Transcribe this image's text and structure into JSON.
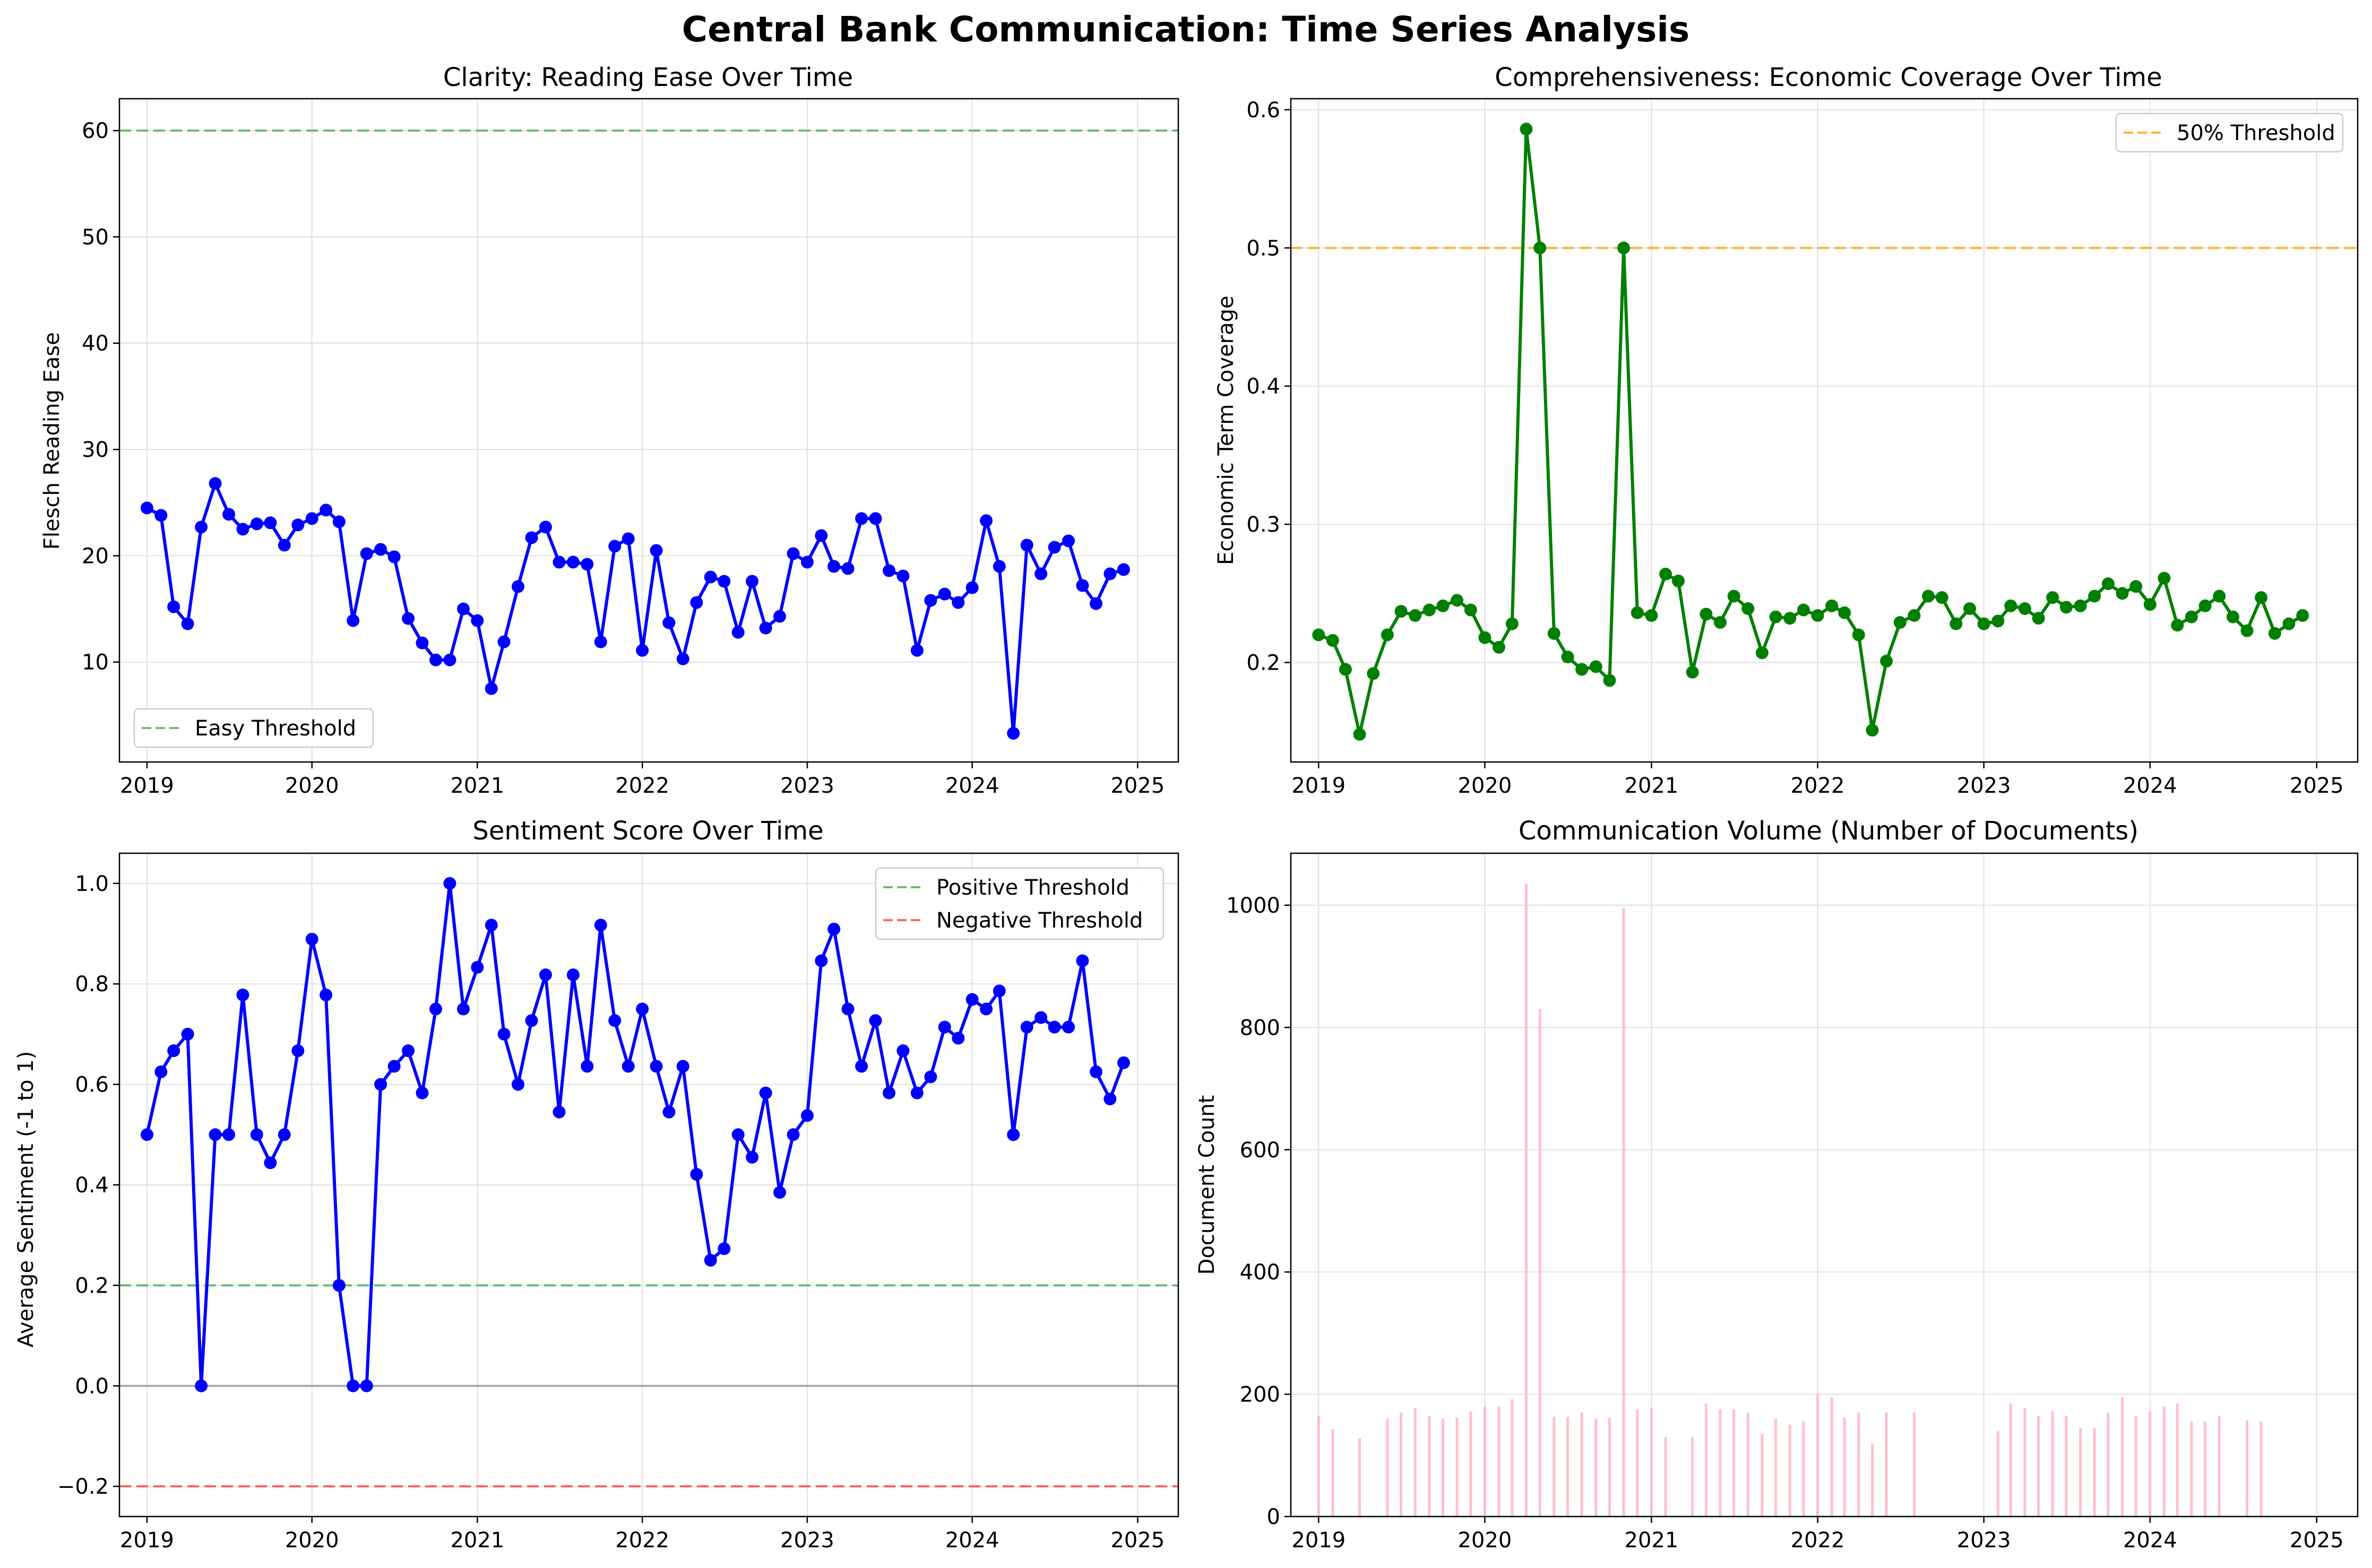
{
  "figure": {
    "title": "Central Bank Communication: Time Series Analysis"
  },
  "colors": {
    "blue": "#0000ff",
    "green": "#008000",
    "easy_threshold": "#4caf50",
    "orange_threshold": "#ffa500",
    "positive_threshold": "#4caf50",
    "negative_threshold": "#ff4040",
    "zero_line": "#808080",
    "bar": "#ffb6c1",
    "grid": "#e0e0e0"
  },
  "chart_data": [
    {
      "type": "line",
      "title": "Clarity: Reading Ease Over Time",
      "xlabel": "",
      "ylabel": "Flesch Reading Ease",
      "xlim": [
        "2018-11-01",
        "2025-04-01"
      ],
      "ylim": [
        0.6,
        63
      ],
      "grid": true,
      "x_ticks": [
        "2019",
        "2020",
        "2021",
        "2022",
        "2023",
        "2024",
        "2025"
      ],
      "y_ticks": [
        10,
        20,
        30,
        40,
        50,
        60
      ],
      "legend": {
        "placement": "lower-left",
        "entries": [
          "Easy Threshold"
        ]
      },
      "reference_lines": [
        {
          "name": "Easy Threshold",
          "y": 60,
          "color": "easy_threshold",
          "style": "dashed"
        }
      ],
      "series": [
        {
          "color": "blue",
          "x": [
            "2019-01",
            "2019-02",
            "2019-03",
            "2019-04",
            "2019-05",
            "2019-06",
            "2019-07",
            "2019-08",
            "2019-09",
            "2019-10",
            "2019-11",
            "2019-12",
            "2020-01",
            "2020-02",
            "2020-03",
            "2020-04",
            "2020-05",
            "2020-06",
            "2020-07",
            "2020-08",
            "2020-09",
            "2020-10",
            "2020-11",
            "2020-12",
            "2021-01",
            "2021-02",
            "2021-03",
            "2021-04",
            "2021-05",
            "2021-06",
            "2021-07",
            "2021-08",
            "2021-09",
            "2021-10",
            "2021-11",
            "2021-12",
            "2022-01",
            "2022-02",
            "2022-03",
            "2022-04",
            "2022-05",
            "2022-06",
            "2022-07",
            "2022-08",
            "2022-09",
            "2022-10",
            "2022-11",
            "2022-12",
            "2023-01",
            "2023-02",
            "2023-03",
            "2023-04",
            "2023-05",
            "2023-06",
            "2023-07",
            "2023-08",
            "2023-09",
            "2023-10",
            "2023-11",
            "2023-12",
            "2024-01",
            "2024-02",
            "2024-03",
            "2024-04",
            "2024-05",
            "2024-06",
            "2024-07",
            "2024-08",
            "2024-09",
            "2024-10",
            "2024-11",
            "2024-12"
          ],
          "y": [
            24.5,
            23.8,
            15.2,
            13.6,
            22.7,
            26.8,
            23.9,
            22.5,
            23.0,
            23.1,
            21.0,
            22.9,
            23.5,
            24.3,
            23.2,
            13.9,
            20.2,
            20.6,
            19.9,
            14.1,
            11.8,
            10.2,
            10.2,
            15.0,
            13.9,
            7.5,
            11.9,
            17.1,
            21.7,
            22.7,
            19.4,
            19.4,
            19.2,
            11.9,
            20.9,
            21.6,
            11.1,
            20.5,
            13.7,
            10.3,
            15.6,
            18.0,
            17.6,
            12.8,
            17.6,
            13.2,
            14.3,
            20.2,
            19.4,
            21.9,
            19.0,
            18.8,
            23.5,
            23.5,
            18.6,
            18.1,
            11.1,
            15.8,
            16.4,
            15.6,
            17.0,
            23.3,
            19.0,
            3.3,
            21.0,
            18.3,
            20.8,
            21.4,
            17.2,
            15.5,
            18.3,
            18.7
          ]
        }
      ]
    },
    {
      "type": "line",
      "title": "Comprehensiveness: Economic Coverage Over Time",
      "xlabel": "",
      "ylabel": "Economic Term Coverage",
      "xlim": [
        "2018-11-01",
        "2025-04-01"
      ],
      "ylim": [
        0.128,
        0.608
      ],
      "grid": true,
      "x_ticks": [
        "2019",
        "2020",
        "2021",
        "2022",
        "2023",
        "2024",
        "2025"
      ],
      "y_ticks": [
        0.2,
        0.3,
        0.4,
        0.5,
        0.6
      ],
      "legend": {
        "placement": "upper-right",
        "entries": [
          "50% Threshold"
        ]
      },
      "reference_lines": [
        {
          "name": "50% Threshold",
          "y": 0.5,
          "color": "orange_threshold",
          "style": "dashed"
        }
      ],
      "series": [
        {
          "color": "green",
          "x": [
            "2019-01",
            "2019-02",
            "2019-03",
            "2019-04",
            "2019-05",
            "2019-06",
            "2019-07",
            "2019-08",
            "2019-09",
            "2019-10",
            "2019-11",
            "2019-12",
            "2020-01",
            "2020-02",
            "2020-03",
            "2020-04",
            "2020-05",
            "2020-06",
            "2020-07",
            "2020-08",
            "2020-09",
            "2020-10",
            "2020-11",
            "2020-12",
            "2021-01",
            "2021-02",
            "2021-03",
            "2021-04",
            "2021-05",
            "2021-06",
            "2021-07",
            "2021-08",
            "2021-09",
            "2021-10",
            "2021-11",
            "2021-12",
            "2022-01",
            "2022-02",
            "2022-03",
            "2022-04",
            "2022-05",
            "2022-06",
            "2022-07",
            "2022-08",
            "2022-09",
            "2022-10",
            "2022-11",
            "2022-12",
            "2023-01",
            "2023-02",
            "2023-03",
            "2023-04",
            "2023-05",
            "2023-06",
            "2023-07",
            "2023-08",
            "2023-09",
            "2023-10",
            "2023-11",
            "2023-12",
            "2024-01",
            "2024-02",
            "2024-03",
            "2024-04",
            "2024-05",
            "2024-06",
            "2024-07",
            "2024-08",
            "2024-09",
            "2024-10",
            "2024-11",
            "2024-12"
          ],
          "y": [
            0.22,
            0.216,
            0.195,
            0.148,
            0.192,
            0.22,
            0.237,
            0.234,
            0.238,
            0.241,
            0.245,
            0.238,
            0.218,
            0.211,
            0.228,
            0.586,
            0.5,
            0.221,
            0.204,
            0.195,
            0.197,
            0.187,
            0.5,
            0.236,
            0.234,
            0.264,
            0.259,
            0.193,
            0.235,
            0.229,
            0.248,
            0.239,
            0.207,
            0.233,
            0.232,
            0.238,
            0.234,
            0.241,
            0.236,
            0.22,
            0.151,
            0.201,
            0.229,
            0.234,
            0.248,
            0.247,
            0.228,
            0.239,
            0.228,
            0.23,
            0.241,
            0.239,
            0.232,
            0.247,
            0.24,
            0.241,
            0.248,
            0.257,
            0.25,
            0.255,
            0.242,
            0.261,
            0.227,
            0.233,
            0.241,
            0.248,
            0.233,
            0.223,
            0.247,
            0.221,
            0.228,
            0.234
          ]
        }
      ]
    },
    {
      "type": "line",
      "title": "Sentiment Score Over Time",
      "xlabel": "",
      "ylabel": "Average Sentiment (-1 to 1)",
      "xlim": [
        "2018-11-01",
        "2025-04-01"
      ],
      "ylim": [
        -0.26,
        1.06
      ],
      "grid": true,
      "x_ticks": [
        "2019",
        "2020",
        "2021",
        "2022",
        "2023",
        "2024",
        "2025"
      ],
      "y_ticks": [
        -0.2,
        0.0,
        0.2,
        0.4,
        0.6,
        0.8,
        1.0
      ],
      "y_tick_labels": [
        "−0.2",
        "0.0",
        "0.2",
        "0.4",
        "0.6",
        "0.8",
        "1.0"
      ],
      "legend": {
        "placement": "upper-right",
        "entries": [
          "Positive Threshold",
          "Negative Threshold"
        ]
      },
      "reference_lines": [
        {
          "name": "Positive Threshold",
          "y": 0.2,
          "color": "positive_threshold",
          "style": "dashed"
        },
        {
          "name": "Negative Threshold",
          "y": -0.2,
          "color": "negative_threshold",
          "style": "dashed"
        },
        {
          "name": "",
          "y": 0.0,
          "color": "zero_line",
          "style": "solid"
        }
      ],
      "series": [
        {
          "color": "blue",
          "x": [
            "2019-01",
            "2019-02",
            "2019-03",
            "2019-04",
            "2019-05",
            "2019-06",
            "2019-07",
            "2019-08",
            "2019-09",
            "2019-10",
            "2019-11",
            "2019-12",
            "2020-01",
            "2020-02",
            "2020-03",
            "2020-04",
            "2020-05",
            "2020-06",
            "2020-07",
            "2020-08",
            "2020-09",
            "2020-10",
            "2020-11",
            "2020-12",
            "2021-01",
            "2021-02",
            "2021-03",
            "2021-04",
            "2021-05",
            "2021-06",
            "2021-07",
            "2021-08",
            "2021-09",
            "2021-10",
            "2021-11",
            "2021-12",
            "2022-01",
            "2022-02",
            "2022-03",
            "2022-04",
            "2022-05",
            "2022-06",
            "2022-07",
            "2022-08",
            "2022-09",
            "2022-10",
            "2022-11",
            "2022-12",
            "2023-01",
            "2023-02",
            "2023-03",
            "2023-04",
            "2023-05",
            "2023-06",
            "2023-07",
            "2023-08",
            "2023-09",
            "2023-10",
            "2023-11",
            "2023-12",
            "2024-01",
            "2024-02",
            "2024-03",
            "2024-04",
            "2024-05",
            "2024-06",
            "2024-07",
            "2024-08",
            "2024-09",
            "2024-10",
            "2024-11",
            "2024-12"
          ],
          "y": [
            0.5,
            0.625,
            0.667,
            0.7,
            0.0,
            0.5,
            0.5,
            0.778,
            0.5,
            0.444,
            0.5,
            0.667,
            0.889,
            0.778,
            0.2,
            0.0,
            0.0,
            0.6,
            0.636,
            0.667,
            0.583,
            0.75,
            1.0,
            0.75,
            0.833,
            0.917,
            0.7,
            0.6,
            0.727,
            0.818,
            0.545,
            0.818,
            0.636,
            0.917,
            0.727,
            0.636,
            0.75,
            0.636,
            0.545,
            0.636,
            0.421,
            0.25,
            0.273,
            0.5,
            0.455,
            0.583,
            0.385,
            0.5,
            0.538,
            0.846,
            0.909,
            0.75,
            0.636,
            0.727,
            0.583,
            0.667,
            0.583,
            0.615,
            0.714,
            0.692,
            0.769,
            0.75,
            0.786,
            0.5,
            0.714,
            0.733,
            0.714,
            0.714,
            0.846,
            0.625,
            0.571,
            0.643
          ]
        }
      ]
    },
    {
      "type": "bar",
      "title": "Communication Volume (Number of Documents)",
      "xlabel": "",
      "ylabel": "Document Count",
      "xlim": [
        "2018-11-01",
        "2025-04-01"
      ],
      "ylim": [
        0,
        1085
      ],
      "grid": true,
      "x_ticks": [
        "2019",
        "2020",
        "2021",
        "2022",
        "2023",
        "2024",
        "2025"
      ],
      "y_ticks": [
        0,
        200,
        400,
        600,
        800,
        1000
      ],
      "series": [
        {
          "color": "bar",
          "x": [
            "2019-01",
            "2019-02",
            "2019-04",
            "2019-06",
            "2019-07",
            "2019-08",
            "2019-09",
            "2019-10",
            "2019-11",
            "2019-12",
            "2020-01",
            "2020-02",
            "2020-03",
            "2020-04",
            "2020-05",
            "2020-06",
            "2020-07",
            "2020-08",
            "2020-09",
            "2020-10",
            "2020-11",
            "2020-12",
            "2021-01",
            "2021-02",
            "2021-04",
            "2021-05",
            "2021-06",
            "2021-07",
            "2021-08",
            "2021-09",
            "2021-10",
            "2021-11",
            "2021-12",
            "2022-01",
            "2022-02",
            "2022-03",
            "2022-04",
            "2022-05",
            "2022-06",
            "2022-08",
            "2022-09",
            "2023-02",
            "2023-03",
            "2023-04",
            "2023-05",
            "2023-06",
            "2023-07",
            "2023-08",
            "2023-09",
            "2023-10",
            "2023-11",
            "2023-12",
            "2024-01",
            "2024-02",
            "2024-03",
            "2024-04",
            "2024-05",
            "2024-06",
            "2024-08",
            "2024-09",
            "2025-01"
          ],
          "values": [
            165,
            143,
            128,
            160,
            170,
            178,
            165,
            160,
            162,
            172,
            180,
            180,
            192,
            1035,
            830,
            163,
            163,
            170,
            160,
            162,
            995,
            175,
            178,
            130,
            130,
            185,
            175,
            175,
            170,
            135,
            160,
            150,
            155,
            200,
            195,
            162,
            170,
            118,
            170,
            170,
            0,
            140,
            185,
            178,
            165,
            172,
            165,
            145,
            145,
            170,
            195,
            165,
            172,
            180,
            185,
            155,
            155,
            165,
            157,
            155,
            0
          ]
        }
      ]
    }
  ]
}
